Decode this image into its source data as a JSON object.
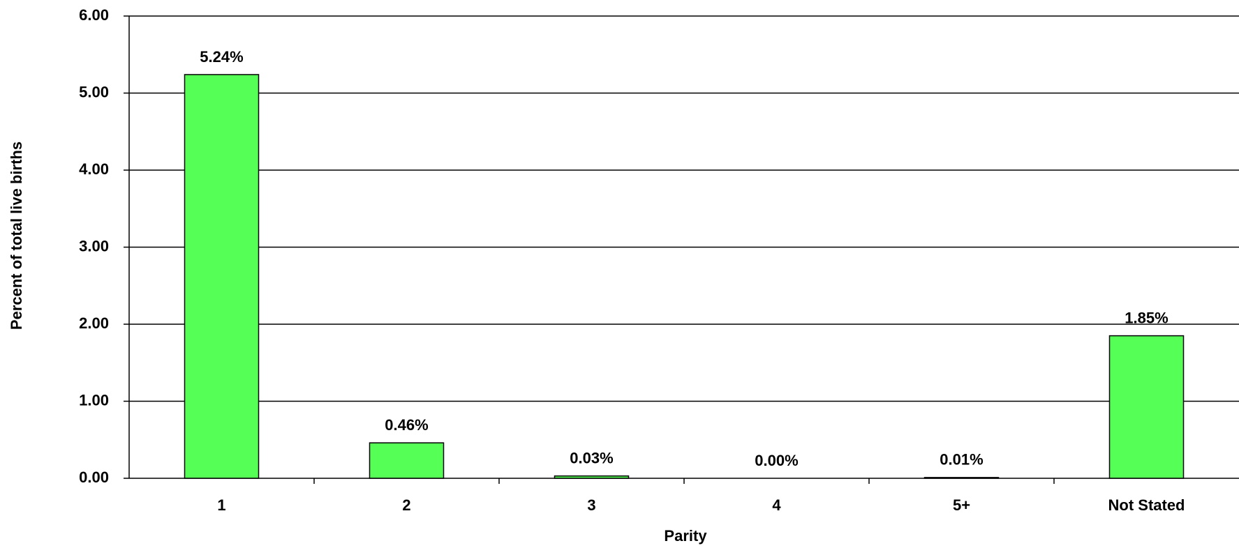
{
  "chart_data": {
    "type": "bar",
    "x_label": "Parity",
    "y_label": "Percent of total live births",
    "categories": [
      "1",
      "2",
      "3",
      "4",
      "5+",
      "Not Stated"
    ],
    "values": [
      5.24,
      0.46,
      0.03,
      0.0,
      0.01,
      1.85
    ],
    "value_labels": [
      "5.24%",
      "0.46%",
      "0.03%",
      "0.00%",
      "0.01%",
      "1.85%"
    ],
    "color": "#55ff55",
    "ylim": [
      0,
      6
    ],
    "yticks": [
      {
        "value": 0,
        "label": "0.00"
      },
      {
        "value": 1,
        "label": "1.00"
      },
      {
        "value": 2,
        "label": "2.00"
      },
      {
        "value": 3,
        "label": "3.00"
      },
      {
        "value": 4,
        "label": "4.00"
      },
      {
        "value": 5,
        "label": "5.00"
      },
      {
        "value": 6,
        "label": "6.00"
      }
    ],
    "grid": true
  }
}
